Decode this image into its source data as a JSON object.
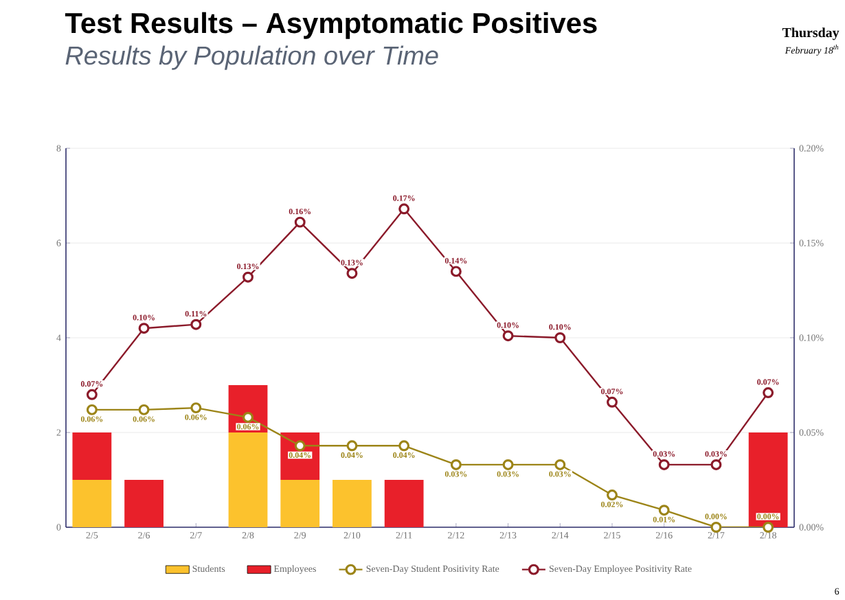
{
  "chart_data": {
    "type": "bar",
    "title": "Test Results – Asymptomatic Positives",
    "subtitle": "Results by Population over Time",
    "annotations": [
      "Thursday",
      "February 18$^{th}$",
      "6"
    ],
    "categories": [
      "2/5",
      "2/6",
      "2/7",
      "2/8",
      "2/9",
      "2/10",
      "2/11",
      "2/12",
      "2/13",
      "2/14",
      "2/15",
      "2/16",
      "2/17",
      "2/18"
    ],
    "stacked": true,
    "ylim": [
      0,
      8
    ],
    "yticks": [
      0,
      2,
      4,
      6,
      8
    ],
    "y2lim": [
      0,
      0.2
    ],
    "y2ticks": [
      {
        "value": 0,
        "label": "0.00%"
      },
      {
        "value": 0.05,
        "label": "0.05%"
      },
      {
        "value": 0.1,
        "label": "0.10%"
      },
      {
        "value": 0.15,
        "label": "0.15%"
      },
      {
        "value": 0.2,
        "label": "0.20%"
      }
    ],
    "grid": "y",
    "legend": "bottom",
    "marker": "circle",
    "line_style": "solid",
    "series": [
      {
        "name": "Students",
        "color": "#fcc22d",
        "values": [
          1,
          0,
          0,
          2,
          1,
          1,
          0,
          0,
          0,
          0,
          0,
          0,
          0,
          0
        ]
      },
      {
        "name": "Employees",
        "color": "#e8202a",
        "values": [
          1,
          1,
          0,
          1,
          1,
          0,
          1,
          0,
          0,
          0,
          0,
          0,
          0,
          2
        ]
      },
      {
        "name": "Seven-Day Student Positivity Rate",
        "type": "line",
        "axis": "y2",
        "color": "#9c8417",
        "values": [
          0.062,
          0.062,
          0.063,
          0.058,
          0.043,
          0.043,
          0.043,
          0.033,
          0.033,
          0.033,
          0.017,
          0.009,
          0,
          0
        ],
        "value_labels": [
          "0.06%",
          "0.06%",
          "0.06%",
          "0.06%",
          "0.04%",
          "0.04%",
          "0.04%",
          "0.03%",
          "0.03%",
          "0.03%",
          "0.02%",
          "0.01%",
          "0.00%",
          "0.00%"
        ]
      },
      {
        "name": "Seven-Day Employee Positivity Rate",
        "type": "line",
        "axis": "y2",
        "color": "#8b1a2a",
        "values": [
          0.07,
          0.105,
          0.107,
          0.132,
          0.161,
          0.134,
          0.168,
          0.135,
          0.101,
          0.1,
          0.066,
          0.033,
          0.033,
          0.071
        ],
        "value_labels": [
          "0.07%",
          "0.10%",
          "0.11%",
          "0.13%",
          "0.16%",
          "0.13%",
          "0.17%",
          "0.14%",
          "0.10%",
          "0.10%",
          "0.07%",
          "0.03%",
          "0.03%",
          "0.07%"
        ]
      }
    ]
  }
}
